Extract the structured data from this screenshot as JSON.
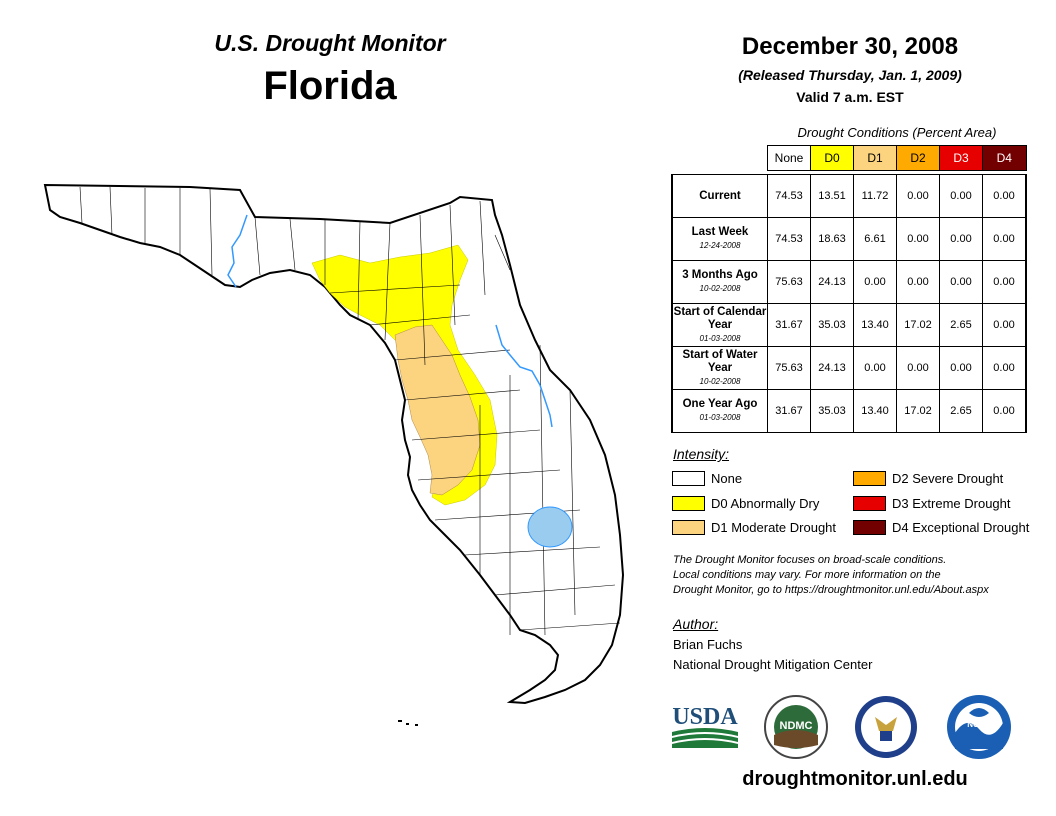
{
  "header": {
    "subtitle": "U.S. Drought Monitor",
    "title": "Florida",
    "date": "December 30, 2008",
    "released": "(Released Thursday, Jan. 1, 2009)",
    "valid": "Valid 7 a.m. EST"
  },
  "table": {
    "caption": "Drought Conditions (Percent Area)",
    "columns": [
      "None",
      "D0",
      "D1",
      "D2",
      "D3",
      "D4"
    ],
    "column_colors": [
      "#ffffff",
      "#ffff00",
      "#fcd37f",
      "#ffaa00",
      "#e60000",
      "#730000"
    ],
    "rows": [
      {
        "label": "Current",
        "date": "",
        "values": [
          "74.53",
          "13.51",
          "11.72",
          "0.00",
          "0.00",
          "0.00"
        ]
      },
      {
        "label": "Last Week",
        "date": "12-24-2008",
        "values": [
          "74.53",
          "18.63",
          "6.61",
          "0.00",
          "0.00",
          "0.00"
        ]
      },
      {
        "label": "3 Months Ago",
        "date": "10-02-2008",
        "values": [
          "75.63",
          "24.13",
          "0.00",
          "0.00",
          "0.00",
          "0.00"
        ]
      },
      {
        "label": "Start of Calendar Year",
        "date": "01-03-2008",
        "values": [
          "31.67",
          "35.03",
          "13.40",
          "17.02",
          "2.65",
          "0.00"
        ]
      },
      {
        "label": "Start of Water Year",
        "date": "10-02-2008",
        "values": [
          "75.63",
          "24.13",
          "0.00",
          "0.00",
          "0.00",
          "0.00"
        ]
      },
      {
        "label": "One Year Ago",
        "date": "01-03-2008",
        "values": [
          "31.67",
          "35.03",
          "13.40",
          "17.02",
          "2.65",
          "0.00"
        ]
      }
    ]
  },
  "legend": {
    "title": "Intensity:",
    "items": [
      {
        "label": "None",
        "color": "#ffffff"
      },
      {
        "label": "D0 Abnormally Dry",
        "color": "#ffff00"
      },
      {
        "label": "D1 Moderate Drought",
        "color": "#fcd37f"
      },
      {
        "label": "D2 Severe Drought",
        "color": "#ffaa00"
      },
      {
        "label": "D3 Extreme Drought",
        "color": "#e60000"
      },
      {
        "label": "D4 Exceptional Drought",
        "color": "#730000"
      }
    ]
  },
  "note": {
    "line1": "The Drought Monitor focuses on broad-scale conditions.",
    "line2": "Local conditions may vary. For more information on the",
    "line3": "Drought Monitor, go to https://droughtmonitor.unl.edu/About.aspx"
  },
  "author": {
    "title": "Author:",
    "name": "Brian Fuchs",
    "org": "National Drought Mitigation Center"
  },
  "logos": {
    "usda": "USDA",
    "ndmc": "NDMC",
    "noaa": "NOAA"
  },
  "website": "droughtmonitor.unl.edu"
}
